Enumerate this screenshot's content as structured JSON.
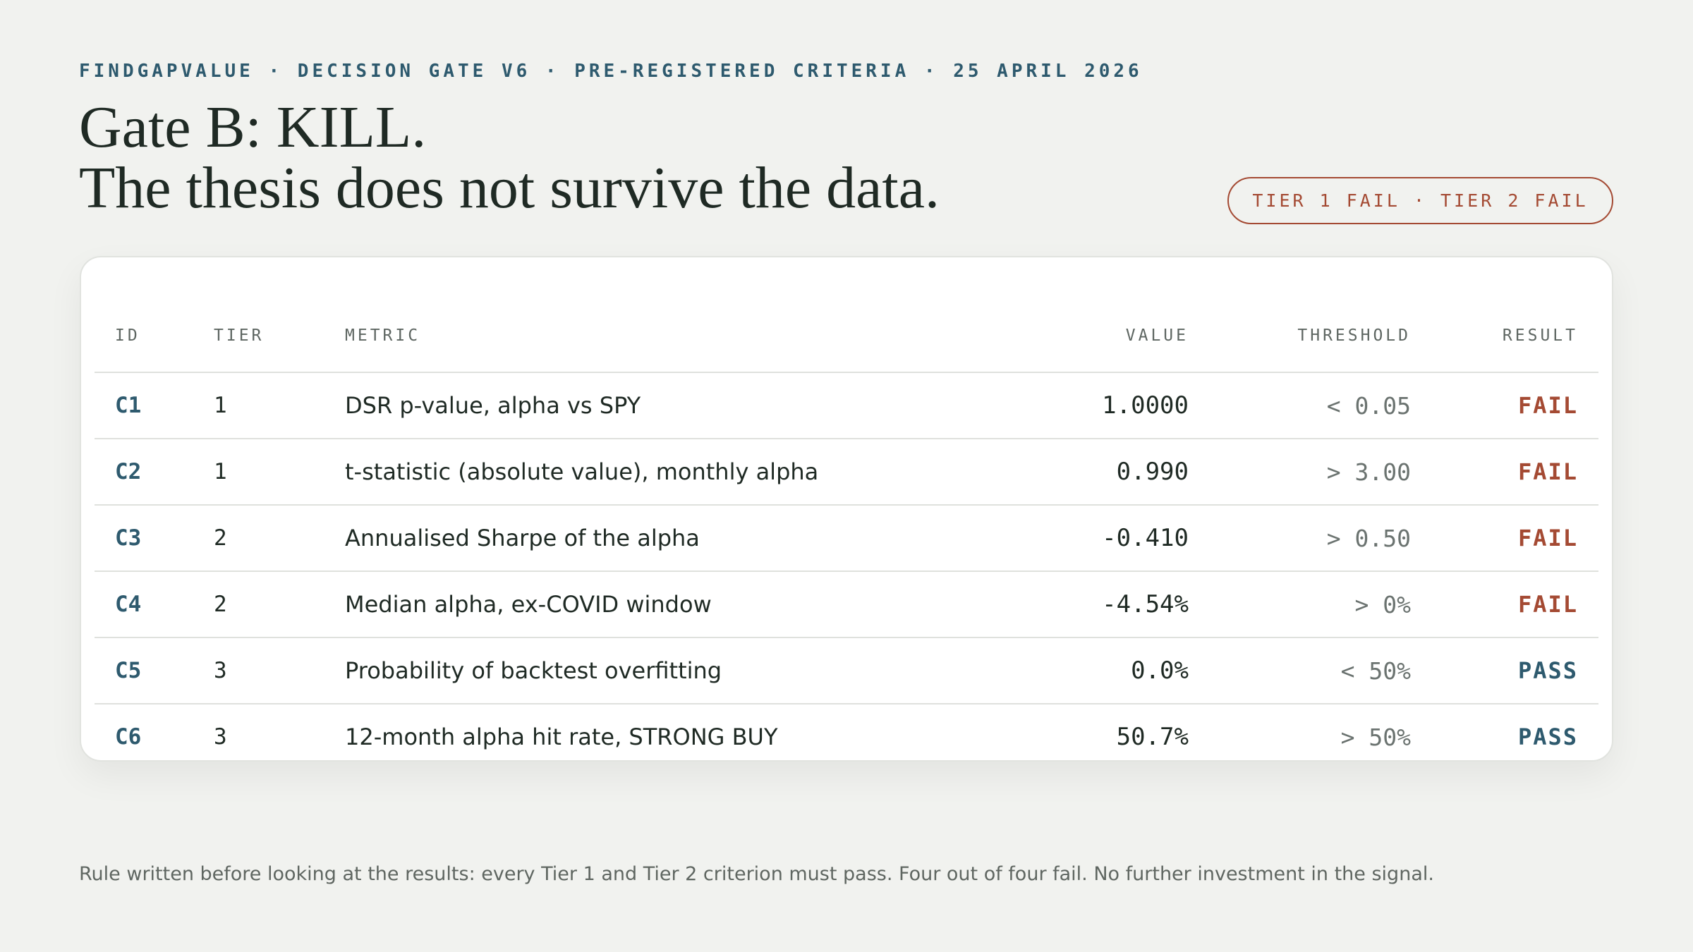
{
  "header": {
    "eyebrow": "FINDGAPVALUE · DECISION GATE V6 · PRE-REGISTERED CRITERIA · 25 APRIL 2026",
    "title_lines": [
      "Gate B: KILL.",
      "The thesis does not survive the data."
    ],
    "badge": "TIER 1 FAIL · TIER 2 FAIL"
  },
  "table": {
    "columns": [
      "ID",
      "TIER",
      "METRIC",
      "VALUE",
      "THRESHOLD",
      "RESULT"
    ],
    "rows": [
      [
        "C1",
        "1",
        "DSR p-value, alpha vs SPY",
        "1.0000",
        "< 0.05",
        "FAIL"
      ],
      [
        "C2",
        "1",
        "t-statistic (absolute value), monthly alpha",
        "0.990",
        "> 3.00",
        "FAIL"
      ],
      [
        "C3",
        "2",
        "Annualised Sharpe of the alpha",
        "-0.410",
        "> 0.50",
        "FAIL"
      ],
      [
        "C4",
        "2",
        "Median alpha, ex-COVID window",
        "-4.54%",
        "> 0%",
        "FAIL"
      ],
      [
        "C5",
        "3",
        "Probability of backtest overfitting",
        "0.0%",
        "< 50%",
        "PASS"
      ],
      [
        "C6",
        "3",
        "12-month alpha hit rate, STRONG BUY",
        "50.7%",
        "> 50%",
        "PASS"
      ]
    ]
  },
  "footer": "Rule written before looking at the results: every Tier 1 and Tier 2 criterion must pass. Four out of four fail. No further investment in the signal."
}
